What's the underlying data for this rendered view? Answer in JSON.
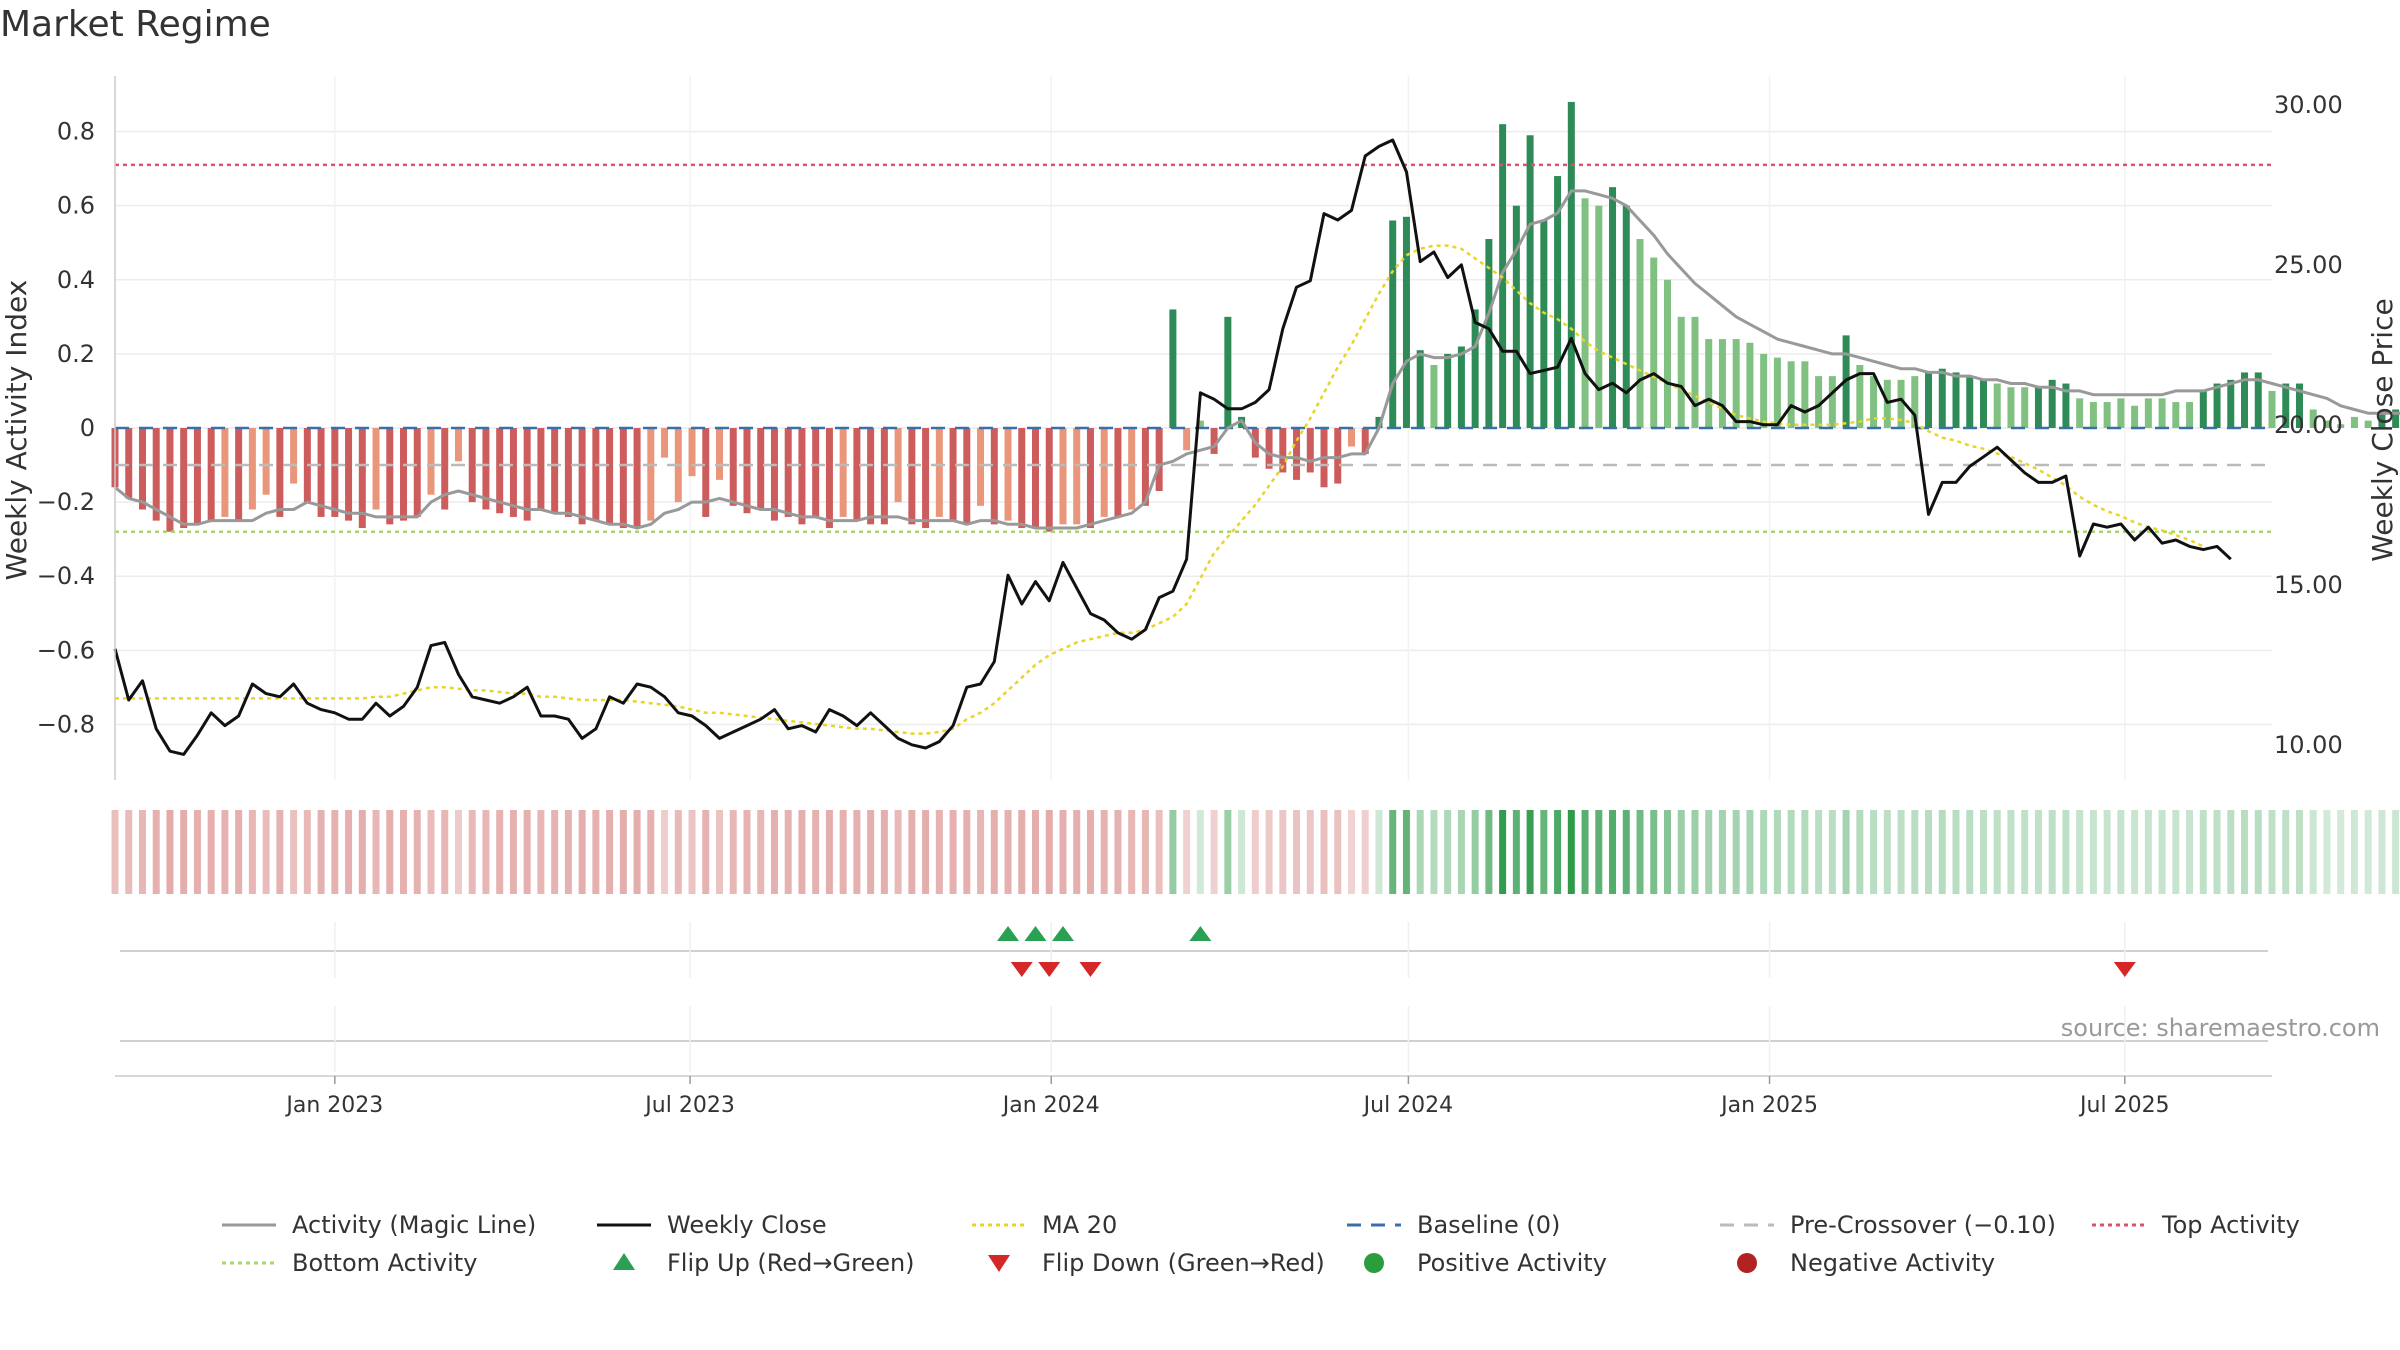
{
  "title": "Market Regime",
  "source": "source: sharemaestro.com",
  "colors": {
    "magic_line": "#999999",
    "close": "#111111",
    "ma20": "#e8d52a",
    "baseline": "#3b6fa8",
    "precross": "#bbbbbb",
    "top": "#d9546b",
    "bottom": "#a9d66a",
    "pos_dark": "#2e8b57",
    "pos_light": "#80c080",
    "neg_dark": "#cd5c5c",
    "neg_light": "#e9967a",
    "flip_up": "#2aa152",
    "flip_down": "#d62728",
    "pos_dot": "#2a9d3f",
    "neg_dot": "#b22222"
  },
  "chart_data": {
    "type": "bar",
    "title": "Market Regime",
    "ylabel": "Weekly Activity Index",
    "y2label": "Weekly Close Price",
    "ylim": [
      -0.95,
      0.95
    ],
    "y2lim": [
      8.9,
      30.9
    ],
    "yticks": [
      "0.8",
      "0.6",
      "0.4",
      "0.2",
      "0",
      "−0.2",
      "−0.4",
      "−0.6",
      "−0.8"
    ],
    "yticks_values": [
      0.8,
      0.6,
      0.4,
      0.2,
      0,
      -0.2,
      -0.4,
      -0.6,
      -0.8
    ],
    "y2ticks": [
      "30.00",
      "25.00",
      "20.00",
      "15.00",
      "10.00"
    ],
    "y2ticks_values": [
      30,
      25,
      20,
      15,
      10
    ],
    "x_start": "2022-09-11",
    "x_end": "2025-09-14",
    "xticks": [
      {
        "date": "2023-01-01",
        "label": "Jan 2023"
      },
      {
        "date": "2023-07-01",
        "label": "Jul 2023"
      },
      {
        "date": "2024-01-01",
        "label": "Jan 2024"
      },
      {
        "date": "2024-07-01",
        "label": "Jul 2024"
      },
      {
        "date": "2025-01-01",
        "label": "Jan 2025"
      },
      {
        "date": "2025-07-01",
        "label": "Jul 2025"
      }
    ],
    "reference_lines": {
      "top": 0.71,
      "bottom": -0.28,
      "baseline": 0,
      "pre_crossover": -0.1
    },
    "weeks": {
      "first": "2022-09-11",
      "interval_days": 7,
      "activity": [
        -0.16,
        -0.19,
        -0.22,
        -0.25,
        -0.28,
        -0.27,
        -0.26,
        -0.25,
        -0.24,
        -0.25,
        -0.22,
        -0.18,
        -0.24,
        -0.15,
        -0.2,
        -0.24,
        -0.24,
        -0.25,
        -0.27,
        -0.22,
        -0.26,
        -0.25,
        -0.24,
        -0.18,
        -0.22,
        -0.09,
        -0.2,
        -0.22,
        -0.23,
        -0.24,
        -0.25,
        -0.22,
        -0.23,
        -0.24,
        -0.26,
        -0.25,
        -0.26,
        -0.27,
        -0.27,
        -0.25,
        -0.08,
        -0.2,
        -0.13,
        -0.24,
        -0.14,
        -0.21,
        -0.23,
        -0.22,
        -0.25,
        -0.24,
        -0.26,
        -0.24,
        -0.27,
        -0.24,
        -0.25,
        -0.26,
        -0.26,
        -0.2,
        -0.26,
        -0.27,
        -0.24,
        -0.25,
        -0.26,
        -0.21,
        -0.26,
        -0.25,
        -0.27,
        -0.27,
        -0.28,
        -0.26,
        -0.26,
        -0.27,
        -0.24,
        -0.24,
        -0.22,
        -0.21,
        -0.17,
        0.32,
        -0.06,
        0.02,
        -0.07,
        0.3,
        0.03,
        -0.08,
        -0.11,
        -0.12,
        -0.14,
        -0.12,
        -0.16,
        -0.15,
        -0.05,
        -0.07,
        0.03,
        0.56,
        0.57,
        0.21,
        0.17,
        0.2,
        0.22,
        0.32,
        0.51,
        0.82,
        0.6,
        0.79,
        0.56,
        0.68,
        0.88,
        0.62,
        0.6,
        0.65,
        0.6,
        0.51,
        0.46,
        0.4,
        0.3,
        0.3,
        0.24,
        0.24,
        0.24,
        0.23,
        0.2,
        0.19,
        0.18,
        0.18,
        0.14,
        0.14,
        0.25,
        0.17,
        0.14,
        0.13,
        0.13,
        0.14,
        0.15,
        0.16,
        0.15,
        0.14,
        0.13,
        0.12,
        0.11,
        0.11,
        0.11,
        0.13,
        0.12,
        0.08,
        0.07,
        0.07,
        0.08,
        0.06,
        0.08,
        0.08,
        0.07,
        0.07,
        0.1,
        0.12,
        0.13,
        0.15,
        0.15,
        0.1,
        0.12,
        0.12,
        0.05,
        0.02,
        0.01,
        0.03,
        0.02,
        0.04,
        0.05,
        0.06,
        0.08,
        0.06,
        0.05,
        0.04,
        0.03,
        0.02,
        0.04,
        0.03,
        -0.06,
        -0.04,
        -0.05,
        -0.04,
        -0.06,
        -0.04,
        -0.07,
        -0.06,
        -0.07,
        -0.05,
        -0.07,
        -0.08,
        -0.09
      ],
      "magic_line": [
        -0.16,
        -0.19,
        -0.2,
        -0.22,
        -0.24,
        -0.26,
        -0.26,
        -0.25,
        -0.25,
        -0.25,
        -0.25,
        -0.23,
        -0.22,
        -0.22,
        -0.2,
        -0.21,
        -0.22,
        -0.23,
        -0.23,
        -0.24,
        -0.24,
        -0.24,
        -0.24,
        -0.2,
        -0.18,
        -0.17,
        -0.18,
        -0.19,
        -0.2,
        -0.21,
        -0.22,
        -0.22,
        -0.23,
        -0.23,
        -0.24,
        -0.25,
        -0.26,
        -0.26,
        -0.27,
        -0.26,
        -0.23,
        -0.22,
        -0.2,
        -0.2,
        -0.19,
        -0.2,
        -0.21,
        -0.22,
        -0.22,
        -0.23,
        -0.24,
        -0.24,
        -0.25,
        -0.25,
        -0.25,
        -0.24,
        -0.24,
        -0.24,
        -0.25,
        -0.25,
        -0.25,
        -0.25,
        -0.26,
        -0.25,
        -0.25,
        -0.26,
        -0.26,
        -0.27,
        -0.27,
        -0.27,
        -0.27,
        -0.26,
        -0.25,
        -0.24,
        -0.23,
        -0.2,
        -0.1,
        -0.09,
        -0.07,
        -0.06,
        -0.05,
        0.0,
        0.02,
        -0.04,
        -0.07,
        -0.08,
        -0.08,
        -0.09,
        -0.08,
        -0.08,
        -0.07,
        -0.07,
        0.0,
        0.12,
        0.18,
        0.2,
        0.19,
        0.19,
        0.2,
        0.22,
        0.31,
        0.42,
        0.48,
        0.55,
        0.56,
        0.58,
        0.64,
        0.64,
        0.63,
        0.62,
        0.6,
        0.56,
        0.52,
        0.47,
        0.43,
        0.39,
        0.36,
        0.33,
        0.3,
        0.28,
        0.26,
        0.24,
        0.23,
        0.22,
        0.21,
        0.2,
        0.2,
        0.19,
        0.18,
        0.17,
        0.16,
        0.16,
        0.15,
        0.15,
        0.14,
        0.14,
        0.13,
        0.13,
        0.12,
        0.12,
        0.11,
        0.11,
        0.1,
        0.1,
        0.09,
        0.09,
        0.09,
        0.09,
        0.09,
        0.09,
        0.1,
        0.1,
        0.1,
        0.11,
        0.12,
        0.13,
        0.13,
        0.12,
        0.11,
        0.1,
        0.09,
        0.08,
        0.06,
        0.05,
        0.04,
        0.04,
        0.04,
        0.04,
        0.04,
        0.04,
        0.04,
        0.03,
        0.03,
        0.02,
        0.01,
        0.0,
        -0.01,
        -0.02,
        -0.03,
        -0.03,
        -0.04,
        -0.04,
        -0.05,
        -0.05,
        -0.06,
        -0.06,
        -0.06
      ],
      "close": [
        13.0,
        11.4,
        12.0,
        10.5,
        9.8,
        9.7,
        10.3,
        11.0,
        10.6,
        10.9,
        11.9,
        11.6,
        11.5,
        11.9,
        11.3,
        11.1,
        11.0,
        10.8,
        10.8,
        11.3,
        10.9,
        11.2,
        11.8,
        13.1,
        13.2,
        12.2,
        11.5,
        11.4,
        11.3,
        11.5,
        11.8,
        10.9,
        10.9,
        10.8,
        10.2,
        10.5,
        11.5,
        11.3,
        11.9,
        11.8,
        11.5,
        11.0,
        10.9,
        10.6,
        10.2,
        10.4,
        10.6,
        10.8,
        11.1,
        10.5,
        10.6,
        10.4,
        11.1,
        10.9,
        10.6,
        11.0,
        10.6,
        10.2,
        10.0,
        9.9,
        10.1,
        10.6,
        11.8,
        11.9,
        12.6,
        15.3,
        14.4,
        15.1,
        14.5,
        15.7,
        14.9,
        14.1,
        13.9,
        13.5,
        13.3,
        13.6,
        14.6,
        14.8,
        15.8,
        21.0,
        20.8,
        20.5,
        20.5,
        20.7,
        21.1,
        23.0,
        24.3,
        24.5,
        26.6,
        26.4,
        26.7,
        28.4,
        28.7,
        28.9,
        27.9,
        25.1,
        25.4,
        24.6,
        25.0,
        23.2,
        23.0,
        22.3,
        22.3,
        21.6,
        21.7,
        21.8,
        22.7,
        21.6,
        21.1,
        21.3,
        21.0,
        21.4,
        21.6,
        21.3,
        21.2,
        20.6,
        20.8,
        20.6,
        20.1,
        20.1,
        20.0,
        20.0,
        20.6,
        20.4,
        20.6,
        21.0,
        21.4,
        21.6,
        21.6,
        20.7,
        20.8,
        20.3,
        17.2,
        18.2,
        18.2,
        18.7,
        19.0,
        19.3,
        18.9,
        18.5,
        18.2,
        18.2,
        18.4,
        15.9,
        16.9,
        16.8,
        16.9,
        16.4,
        16.8,
        16.3,
        16.4,
        16.2,
        16.1,
        16.2,
        15.8
      ],
      "ma20": [
        11.45,
        11.45,
        11.45,
        11.45,
        11.45,
        11.45,
        11.45,
        11.45,
        11.45,
        11.45,
        11.45,
        11.45,
        11.45,
        11.45,
        11.45,
        11.45,
        11.45,
        11.45,
        11.45,
        11.5,
        11.5,
        11.6,
        11.7,
        11.8,
        11.8,
        11.75,
        11.7,
        11.7,
        11.65,
        11.6,
        11.6,
        11.5,
        11.5,
        11.45,
        11.4,
        11.4,
        11.4,
        11.4,
        11.35,
        11.3,
        11.25,
        11.2,
        11.1,
        11.0,
        11.0,
        10.95,
        10.9,
        10.85,
        10.8,
        10.75,
        10.7,
        10.65,
        10.6,
        10.55,
        10.5,
        10.5,
        10.45,
        10.4,
        10.35,
        10.35,
        10.4,
        10.5,
        10.8,
        11.0,
        11.3,
        11.7,
        12.1,
        12.5,
        12.8,
        13.0,
        13.2,
        13.3,
        13.4,
        13.5,
        13.5,
        13.6,
        13.8,
        14.0,
        14.4,
        15.2,
        16.0,
        16.5,
        17.0,
        17.5,
        18.1,
        18.7,
        19.5,
        20.2,
        21.0,
        21.8,
        22.5,
        23.3,
        24.1,
        24.8,
        25.3,
        25.5,
        25.6,
        25.6,
        25.5,
        25.2,
        24.9,
        24.6,
        24.2,
        23.8,
        23.5,
        23.3,
        23.0,
        22.6,
        22.3,
        22.1,
        21.9,
        21.7,
        21.5,
        21.3,
        21.1,
        20.9,
        20.7,
        20.5,
        20.3,
        20.2,
        20.1,
        20.05,
        20.0,
        20.0,
        20.0,
        20.0,
        20.05,
        20.1,
        20.2,
        20.2,
        20.15,
        20.05,
        19.8,
        19.6,
        19.5,
        19.35,
        19.25,
        19.1,
        19.0,
        18.8,
        18.6,
        18.35,
        18.1,
        17.75,
        17.5,
        17.3,
        17.15,
        16.95,
        16.8,
        16.7,
        16.55,
        16.4,
        16.2
      ]
    },
    "flip_up_dates": [
      "2023-12-10",
      "2023-12-24",
      "2024-01-07",
      "2024-03-17"
    ],
    "flip_down_dates": [
      "2023-12-17",
      "2023-12-31",
      "2024-01-21",
      "2025-07-01"
    ]
  },
  "legend": [
    {
      "label": "Activity (Magic Line)",
      "kind": "line",
      "color": "#999999",
      "dash": ""
    },
    {
      "label": "Weekly Close",
      "kind": "line",
      "color": "#111111",
      "dash": ""
    },
    {
      "label": "MA 20",
      "kind": "line",
      "color": "#e8d52a",
      "dash": "4 4"
    },
    {
      "label": "Baseline (0)",
      "kind": "line",
      "color": "#3b6fa8",
      "dash": "14 10"
    },
    {
      "label": "Pre-Crossover (−0.10)",
      "kind": "line",
      "color": "#bbbbbb",
      "dash": "14 10"
    },
    {
      "label": "Top Activity",
      "kind": "line",
      "color": "#d9546b",
      "dash": "4 4"
    },
    {
      "label": "Bottom Activity",
      "kind": "line",
      "color": "#a9d66a",
      "dash": "4 4"
    },
    {
      "label": "Flip Up (Red→Green)",
      "kind": "tri-up",
      "color": "#2aa152"
    },
    {
      "label": "Flip Down (Green→Red)",
      "kind": "tri-down",
      "color": "#d62728"
    },
    {
      "label": "Positive Activity",
      "kind": "dot",
      "color": "#2a9d3f"
    },
    {
      "label": "Negative Activity",
      "kind": "dot",
      "color": "#b22222"
    }
  ]
}
